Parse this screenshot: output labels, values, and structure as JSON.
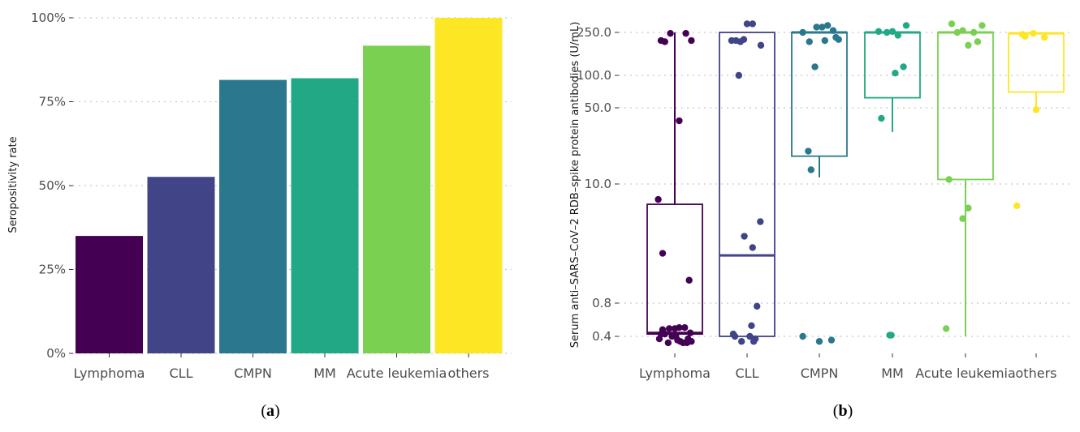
{
  "chart_data": [
    {
      "type": "bar",
      "panel_label": "a",
      "categories": [
        "Lymphoma",
        "CLL",
        "CMPN",
        "MM",
        "Acute leukemia",
        "others"
      ],
      "values": [
        35,
        52.6,
        81.5,
        82,
        91.7,
        100
      ],
      "colors": [
        "#440154",
        "#414487",
        "#2A788E",
        "#22A884",
        "#7AD151",
        "#FDE725"
      ],
      "ylabel": "Seropositivity rate",
      "xlabel": "",
      "ylim": [
        0,
        100
      ],
      "y_ticks": [
        "0%",
        "25%",
        "50%",
        "75%",
        "100%"
      ],
      "grid": "horizontal dotted",
      "legend": "none"
    },
    {
      "type": "box",
      "panel_label": "b",
      "categories": [
        "Lymphoma",
        "CLL",
        "CMPN",
        "MM",
        "Acute leukemia",
        "others"
      ],
      "colors": [
        "#440154",
        "#414487",
        "#2A788E",
        "#22A884",
        "#7AD151",
        "#FDE725"
      ],
      "ylabel": "Serum anti–SARS–CoV–2 RDB–spike protein antibodies (U/mL)",
      "xlabel": "",
      "y_scale": "log",
      "ylim": [
        0.25,
        320
      ],
      "y_ticks": [
        "0.4",
        "0.8",
        "10.0",
        "50.0",
        "100.0",
        "250.0"
      ],
      "grid": "horizontal dotted",
      "legend": "none",
      "boxes": [
        {
          "q1": 0.42,
          "median": 0.43,
          "q3": 6.5,
          "whisker_low": 0.4,
          "whisker_high": 250
        },
        {
          "q1": 0.4,
          "median": 2.2,
          "q3": 250,
          "whisker_low": 0.4,
          "whisker_high": 250
        },
        {
          "q1": 18,
          "median": 250,
          "q3": 250,
          "whisker_low": 11.5,
          "whisker_high": 250
        },
        {
          "q1": 62,
          "median": 250,
          "q3": 250,
          "whisker_low": 30,
          "whisker_high": 250
        },
        {
          "q1": 11,
          "median": 250,
          "q3": 250,
          "whisker_low": 0.4,
          "whisker_high": 250
        },
        {
          "q1": 70,
          "median": 245,
          "q3": 245,
          "whisker_low": 46,
          "whisker_high": 245
        }
      ],
      "points": [
        [
          {
            "j": -0.28,
            "y": 0.38
          },
          {
            "j": -0.22,
            "y": 0.46
          },
          {
            "j": -0.18,
            "y": 0.42
          },
          {
            "j": -0.1,
            "y": 0.47
          },
          {
            "j": -0.05,
            "y": 0.4
          },
          {
            "j": 0.0,
            "y": 0.47
          },
          {
            "j": 0.05,
            "y": 0.37
          },
          {
            "j": 0.1,
            "y": 0.36
          },
          {
            "j": 0.15,
            "y": 0.35
          },
          {
            "j": 0.22,
            "y": 0.35
          },
          {
            "j": 0.3,
            "y": 0.36
          },
          {
            "j": -0.12,
            "y": 0.35
          },
          {
            "j": 0.08,
            "y": 0.48
          },
          {
            "j": 0.18,
            "y": 0.48
          },
          {
            "j": 0.28,
            "y": 0.43
          },
          {
            "j": -0.25,
            "y": 0.42
          },
          {
            "j": 0.02,
            "y": 0.4
          },
          {
            "j": 0.24,
            "y": 0.38
          },
          {
            "j": 0.26,
            "y": 1.3
          },
          {
            "j": -0.22,
            "y": 2.3
          },
          {
            "j": 0.08,
            "y": 38
          },
          {
            "j": -0.3,
            "y": 7.2
          },
          {
            "j": -0.25,
            "y": 210
          },
          {
            "j": -0.18,
            "y": 205
          },
          {
            "j": -0.08,
            "y": 245
          },
          {
            "j": 0.2,
            "y": 245
          },
          {
            "j": 0.3,
            "y": 210
          }
        ],
        [
          {
            "j": -0.28,
            "y": 210
          },
          {
            "j": -0.2,
            "y": 210
          },
          {
            "j": -0.12,
            "y": 205
          },
          {
            "j": -0.06,
            "y": 215
          },
          {
            "j": 0.0,
            "y": 300
          },
          {
            "j": 0.25,
            "y": 190
          },
          {
            "j": -0.15,
            "y": 100
          },
          {
            "j": 0.1,
            "y": 300
          },
          {
            "j": -0.25,
            "y": 0.42
          },
          {
            "j": -0.22,
            "y": 0.4
          },
          {
            "j": 0.15,
            "y": 0.38
          },
          {
            "j": -0.1,
            "y": 0.36
          },
          {
            "j": 0.05,
            "y": 0.4
          },
          {
            "j": 0.12,
            "y": 0.36
          },
          {
            "j": 0.18,
            "y": 0.75
          },
          {
            "j": 0.08,
            "y": 0.5
          },
          {
            "j": 0.1,
            "y": 2.6
          },
          {
            "j": -0.05,
            "y": 3.3
          },
          {
            "j": 0.24,
            "y": 4.5
          }
        ],
        [
          {
            "j": -0.3,
            "y": 250
          },
          {
            "j": -0.18,
            "y": 205
          },
          {
            "j": -0.05,
            "y": 280
          },
          {
            "j": 0.05,
            "y": 280
          },
          {
            "j": 0.15,
            "y": 290
          },
          {
            "j": 0.25,
            "y": 260
          },
          {
            "j": 0.3,
            "y": 225
          },
          {
            "j": 0.35,
            "y": 215
          },
          {
            "j": 0.1,
            "y": 210
          },
          {
            "j": -0.08,
            "y": 120
          },
          {
            "j": -0.2,
            "y": 20
          },
          {
            "j": -0.15,
            "y": 13.5
          },
          {
            "j": -0.3,
            "y": 0.4
          },
          {
            "j": 0.0,
            "y": 0.36
          },
          {
            "j": 0.22,
            "y": 0.37
          }
        ],
        [
          {
            "j": -0.25,
            "y": 255
          },
          {
            "j": -0.1,
            "y": 250
          },
          {
            "j": 0.0,
            "y": 255
          },
          {
            "j": 0.1,
            "y": 235
          },
          {
            "j": 0.25,
            "y": 290
          },
          {
            "j": 0.2,
            "y": 120
          },
          {
            "j": 0.05,
            "y": 105
          },
          {
            "j": -0.2,
            "y": 40
          },
          {
            "j": -0.05,
            "y": 0.41
          },
          {
            "j": -0.02,
            "y": 0.41
          }
        ],
        [
          {
            "j": -0.25,
            "y": 300
          },
          {
            "j": -0.15,
            "y": 250
          },
          {
            "j": -0.05,
            "y": 260
          },
          {
            "j": 0.05,
            "y": 190
          },
          {
            "j": 0.15,
            "y": 250
          },
          {
            "j": 0.22,
            "y": 205
          },
          {
            "j": 0.3,
            "y": 290
          },
          {
            "j": -0.3,
            "y": 11
          },
          {
            "j": 0.05,
            "y": 6.0
          },
          {
            "j": -0.05,
            "y": 4.8
          },
          {
            "j": -0.35,
            "y": 0.47
          }
        ],
        [
          {
            "j": -0.25,
            "y": 240
          },
          {
            "j": -0.05,
            "y": 245
          },
          {
            "j": 0.15,
            "y": 225
          },
          {
            "j": -0.2,
            "y": 230
          },
          {
            "j": 0.0,
            "y": 48
          },
          {
            "j": -0.35,
            "y": 6.3
          }
        ]
      ]
    }
  ]
}
